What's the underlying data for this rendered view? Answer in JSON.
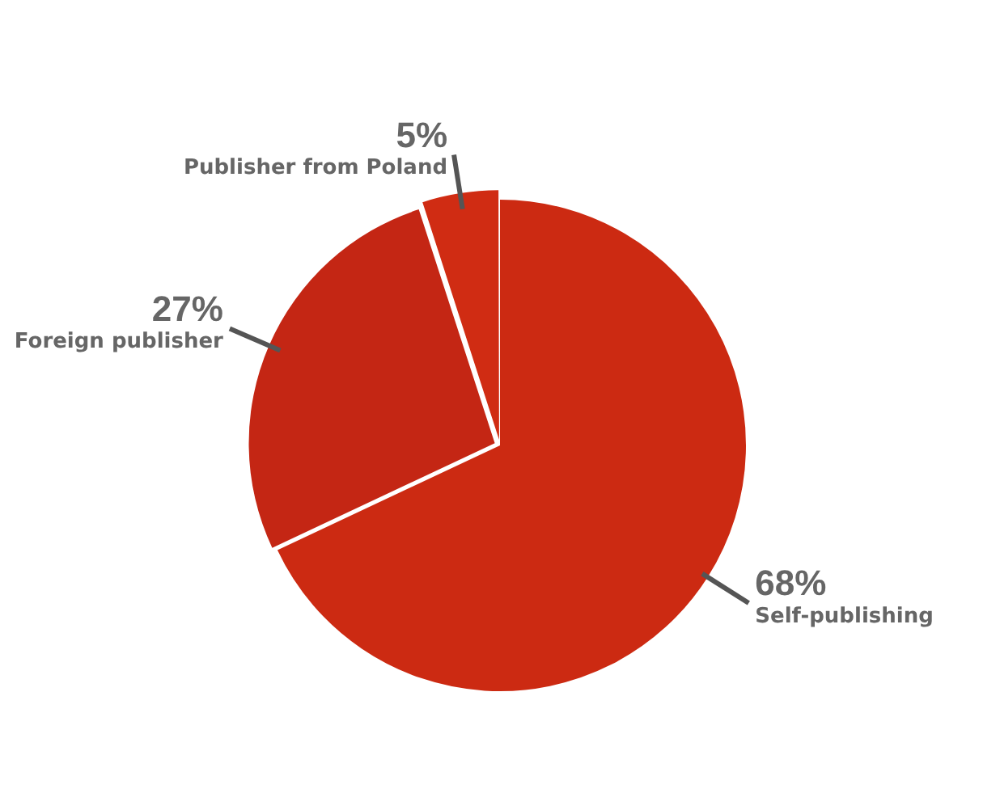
{
  "chart_data": {
    "type": "pie",
    "categories": [
      "Self-publishing",
      "Foreign publisher",
      "Publisher from Poland"
    ],
    "values": [
      68,
      27,
      5
    ],
    "value_labels": [
      "68%",
      "27%",
      "5%"
    ],
    "colors": [
      "#cc2a12",
      "#c42614",
      "#d02c13"
    ],
    "legend": false
  }
}
